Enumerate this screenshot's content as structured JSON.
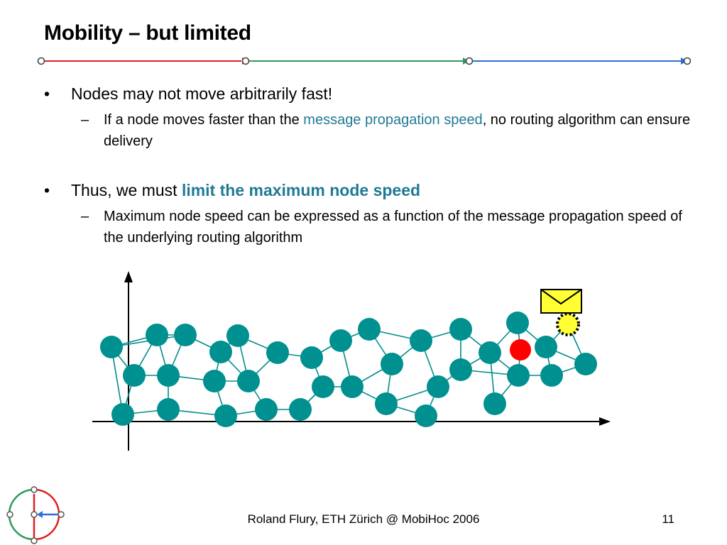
{
  "slide": {
    "title": "Mobility – but limited",
    "bullets": [
      {
        "text": "Nodes may not move arbitrarily fast!",
        "sub": {
          "pre": "If a node moves faster than the ",
          "highlight": "message propagation speed",
          "post": ", no routing algorithm can ensure delivery"
        }
      },
      {
        "pre": "Thus, we must ",
        "highlight": "limit the maximum node speed",
        "sub": {
          "text": "Maximum node speed can be expressed as a function of the message propagation speed of the underlying routing algorithm"
        }
      }
    ],
    "footer": "Roland Flury, ETH Zürich @ MobiHoc 2006",
    "page_number": "11"
  },
  "bullet_symbol": "•",
  "sub_symbol": "–",
  "colors": {
    "highlight": "#1f7a95",
    "node": "#009090",
    "edge": "#008c8c",
    "moving_node": "#ff0000",
    "message_node": "#ffff33",
    "envelope": "#ffff33",
    "header_segments": [
      "#e02020",
      "#2e9a57",
      "#2f6fd8"
    ]
  },
  "icons": [
    "envelope-icon",
    "logo-icon",
    "arrow-head-icon"
  ]
}
